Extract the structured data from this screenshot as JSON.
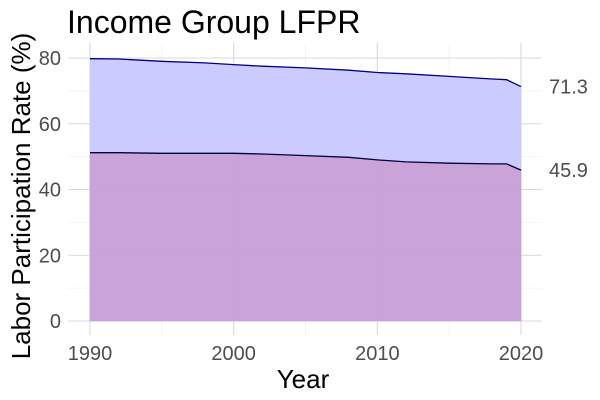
{
  "chart_data": {
    "type": "area",
    "title": "Income Group LFPR",
    "xlabel": "Year",
    "ylabel": "Labor Participation Rate (%)",
    "xlim": [
      1990,
      2020
    ],
    "ylim": [
      0,
      80
    ],
    "x_ticks": [
      1990,
      2000,
      2010,
      2020
    ],
    "y_ticks": [
      0,
      20,
      40,
      60,
      80
    ],
    "grid": true,
    "legend": "none",
    "x": [
      1990,
      1992,
      1995,
      1998,
      2000,
      2002,
      2005,
      2008,
      2010,
      2012,
      2015,
      2018,
      2019,
      2020
    ],
    "series": [
      {
        "values": [
          79.8,
          79.7,
          79.0,
          78.5,
          78.0,
          77.5,
          77.0,
          76.3,
          75.6,
          75.2,
          74.4,
          73.6,
          73.4,
          71.3
        ],
        "end_label": "71.3",
        "fill": "#c8c8ff",
        "line": "#000080"
      },
      {
        "values": [
          51.2,
          51.2,
          51.0,
          51.0,
          51.0,
          50.8,
          50.3,
          49.8,
          49.0,
          48.4,
          48.0,
          47.8,
          47.8,
          45.9
        ],
        "end_label": "45.9",
        "fill": "#c9a0d7",
        "line": "#000040"
      }
    ]
  }
}
